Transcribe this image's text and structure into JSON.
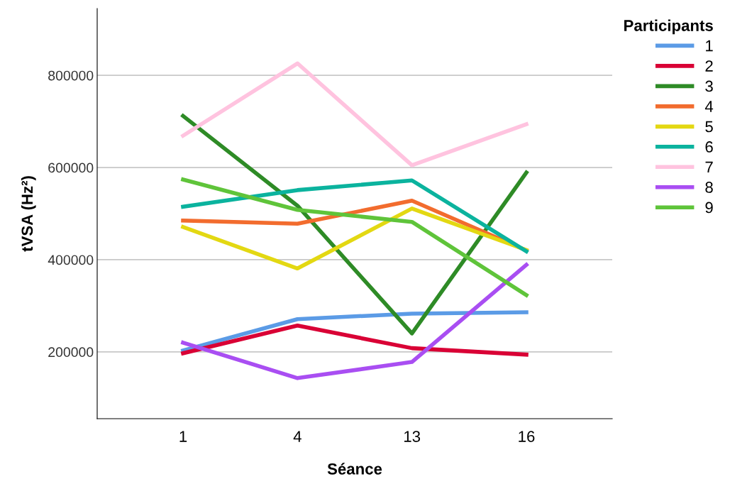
{
  "chart_data": {
    "type": "line",
    "xlabel": "Séance",
    "ylabel": "tVSA (Hz²)",
    "legend_title": "Participants",
    "categories": [
      "1",
      "4",
      "13",
      "16"
    ],
    "series": [
      {
        "name": "1",
        "color": "#5b9be6",
        "values": [
          203000,
          271000,
          283000,
          286000
        ]
      },
      {
        "name": "2",
        "color": "#d90035",
        "values": [
          197000,
          257000,
          208000,
          194000
        ]
      },
      {
        "name": "3",
        "color": "#2e8b26",
        "values": [
          712000,
          517000,
          240000,
          589000
        ]
      },
      {
        "name": "4",
        "color": "#f26c2e",
        "values": [
          485000,
          478000,
          528000,
          420000
        ]
      },
      {
        "name": "5",
        "color": "#e3d812",
        "values": [
          471000,
          381000,
          511000,
          421000
        ]
      },
      {
        "name": "6",
        "color": "#0bb39e",
        "values": [
          515000,
          551000,
          572000,
          418000
        ]
      },
      {
        "name": "7",
        "color": "#ffc3df",
        "values": [
          669000,
          826000,
          605000,
          694000
        ]
      },
      {
        "name": "8",
        "color": "#a94ef2",
        "values": [
          220000,
          143000,
          178000,
          389000
        ]
      },
      {
        "name": "9",
        "color": "#5fc43a",
        "values": [
          574000,
          508000,
          482000,
          323000
        ]
      }
    ],
    "ylim": [
      55000,
      945000
    ],
    "yticks": [
      200000,
      400000,
      600000,
      800000
    ],
    "grid": "y",
    "legend": "top right",
    "marker": "none",
    "line_style": "solid"
  }
}
